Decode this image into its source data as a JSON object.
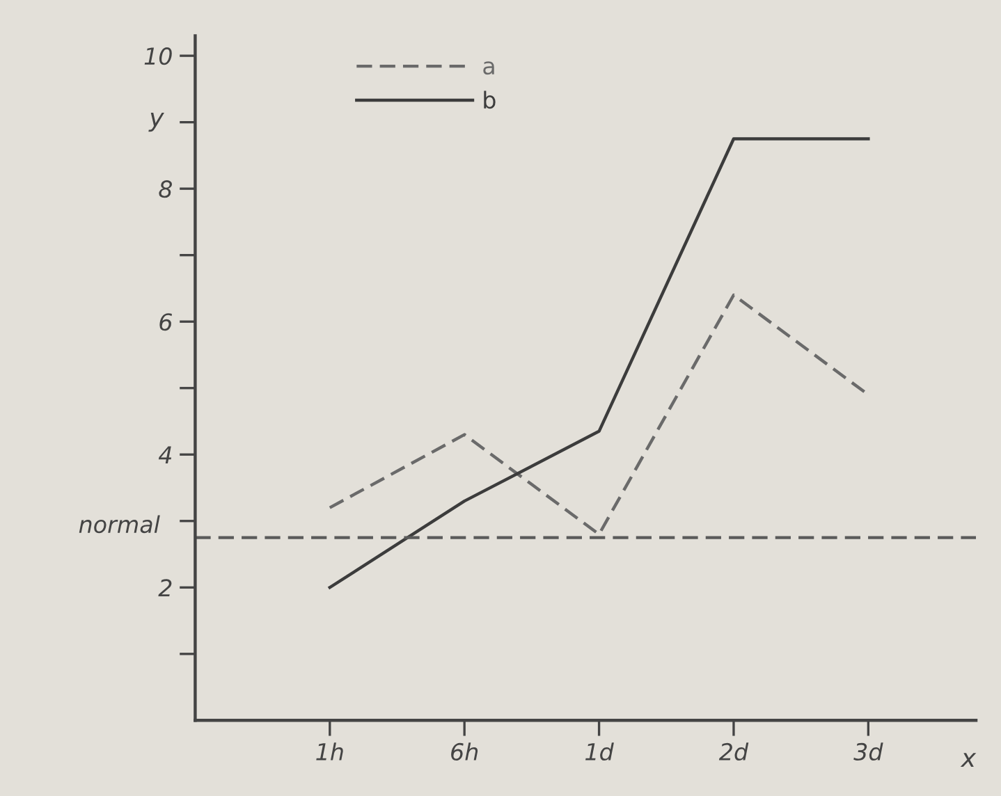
{
  "chart_data": {
    "type": "line",
    "xlabel": "x",
    "ylabel": "y",
    "categories": [
      "1h",
      "6h",
      "1d",
      "2d",
      "3d"
    ],
    "series": [
      {
        "name": "a",
        "color": "#6a6a6a",
        "line_style": "dashed",
        "values": [
          3.2,
          4.3,
          2.8,
          6.4,
          4.9
        ]
      },
      {
        "name": "b",
        "color": "#3c3c3c",
        "line_style": "solid",
        "values": [
          2.0,
          3.3,
          4.35,
          8.75,
          8.75
        ]
      }
    ],
    "ylim": [
      0,
      10.3
    ],
    "yticks": [
      {
        "value": 1,
        "label": null
      },
      2,
      {
        "value": 3,
        "label": null
      },
      4,
      {
        "value": 5,
        "label": null
      },
      6,
      {
        "value": 7,
        "label": null
      },
      8,
      {
        "value": 9,
        "label": null
      },
      10
    ],
    "ref_lines": [
      {
        "axis": "y",
        "value": 2.75,
        "label": "normal",
        "color": "#5a5a5a",
        "line_style": "dashed"
      }
    ],
    "grid": false,
    "legend": "top left",
    "marker": "none"
  }
}
